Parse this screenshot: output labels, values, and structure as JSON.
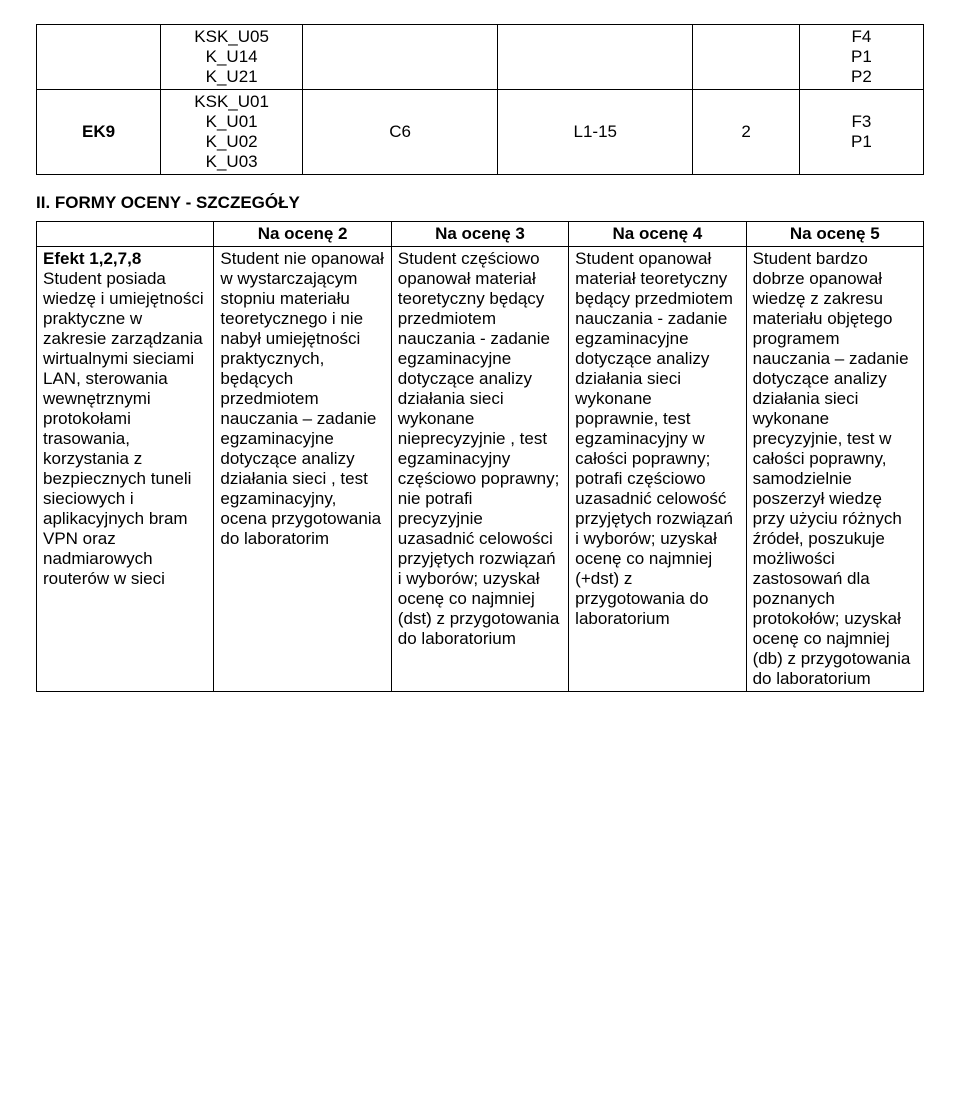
{
  "topTable": {
    "colWidths": [
      "14%",
      "16%",
      "22%",
      "22%",
      "12%",
      "14%"
    ],
    "rows": [
      {
        "cells": [
          {
            "text": "",
            "align": "center"
          },
          {
            "text": "KSK_U05\nK_U14\nK_U21",
            "align": "center"
          },
          {
            "text": "",
            "align": "center"
          },
          {
            "text": "",
            "align": "center"
          },
          {
            "text": "",
            "align": "center"
          },
          {
            "text": "F4\nP1\nP2",
            "align": "center"
          }
        ]
      },
      {
        "cells": [
          {
            "text": "EK9",
            "align": "center",
            "bold": true
          },
          {
            "text": "KSK_U01\nK_U01\nK_U02\nK_U03",
            "align": "center"
          },
          {
            "text": "C6",
            "align": "center"
          },
          {
            "text": "L1-15",
            "align": "center"
          },
          {
            "text": "2",
            "align": "center"
          },
          {
            "text": "F3\nP1",
            "align": "center"
          }
        ]
      }
    ]
  },
  "sectionHeading": "II. FORMY OCENY - SZCZEGÓŁY",
  "rubric": {
    "colWidths": [
      "20%",
      "20%",
      "20%",
      "20%",
      "20%"
    ],
    "headers": [
      "",
      "Na ocenę 2",
      "Na ocenę 3",
      "Na ocenę 4",
      "Na ocenę 5"
    ],
    "row": {
      "label": "Efekt 1,2,7,8",
      "desc": "Student posiada wiedzę i umiejętności praktyczne w zakresie zarządzania wirtualnymi sieciami LAN, sterowania wewnętrznymi protokołami trasowania, korzystania z bezpiecznych tuneli sieciowych i aplikacyjnych bram VPN oraz nadmiarowych routerów w sieci",
      "c2": "Student nie opanował w wystarczającym stopniu materiału teoretycznego i nie nabył umiejętności praktycznych, będących przedmiotem nauczania – zadanie egzaminacyjne dotyczące analizy działania sieci , test egzaminacyjny, ocena przygotowania do laboratorim",
      "c3": "Student częściowo opanował materiał teoretyczny będący przedmiotem nauczania - zadanie egzaminacyjne dotyczące analizy działania sieci wykonane nieprecyzyjnie , test egzaminacyjny częściowo poprawny; nie potrafi precyzyjnie uzasadnić celowości przyjętych rozwiązań i wyborów; uzyskał ocenę co najmniej (dst) z przygotowania do laboratorium",
      "c4": "Student opanował materiał teoretyczny będący przedmiotem nauczania - zadanie egzaminacyjne dotyczące analizy działania sieci wykonane poprawnie, test egzaminacyjny w całości poprawny; potrafi częściowo uzasadnić celowość przyjętych rozwiązań i wyborów; uzyskał ocenę co najmniej (+dst) z przygotowania do laboratorium",
      "c5": "Student bardzo dobrze opanował wiedzę z zakresu materiału objętego programem nauczania – zadanie dotyczące analizy działania sieci wykonane precyzyjnie, test w całości poprawny, samodzielnie poszerzył wiedzę przy użyciu różnych źródeł, poszukuje możliwości zastosowań dla poznanych protokołów; uzyskał ocenę co najmniej (db) z przygotowania do laboratorium"
    }
  }
}
